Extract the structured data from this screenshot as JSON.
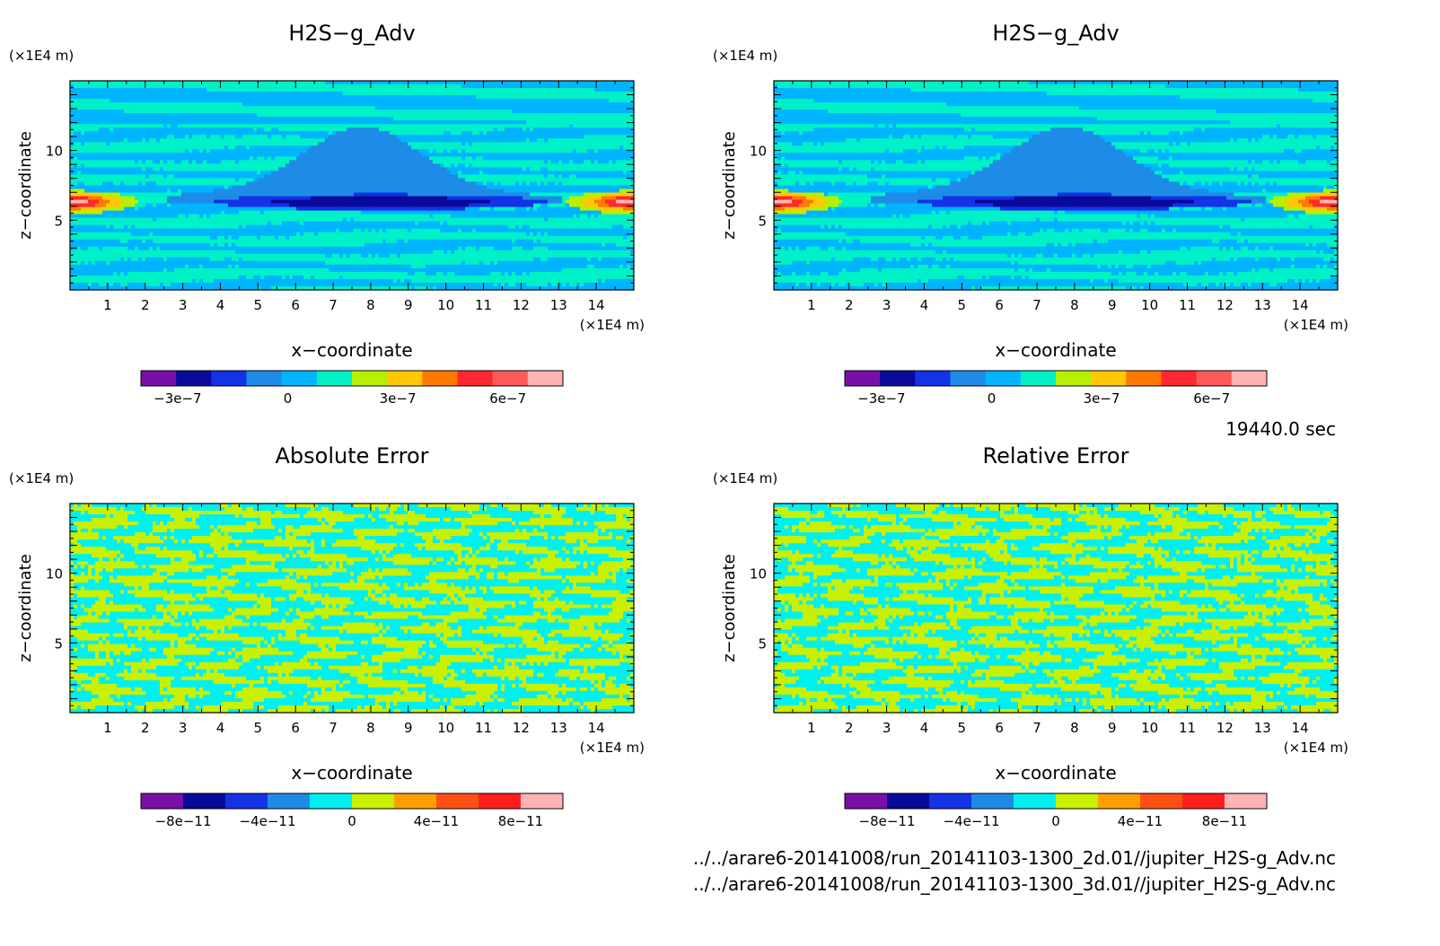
{
  "time_label": "19440.0 sec",
  "file_paths": [
    "../../arare6-20141008/run_20141103-1300_2d.01//jupiter_H2S-g_Adv.nc",
    "../../arare6-20141008/run_20141103-1300_3d.01//jupiter_H2S-g_Adv.nc"
  ],
  "palette": {
    "field": [
      "#7a0fa8",
      "#0a0a9a",
      "#1432e6",
      "#1e8ce6",
      "#00b4ff",
      "#00f0c8",
      "#b4f000",
      "#ffc800",
      "#ff7800",
      "#ff2830",
      "#ff5a5a",
      "#ffb4b4"
    ],
    "error": [
      "#7a0fa8",
      "#0a0a9a",
      "#1432e6",
      "#1e8ce6",
      "#00f0f0",
      "#c8f000",
      "#ffa000",
      "#ff5014",
      "#ff1e1e",
      "#ffb4b4"
    ]
  },
  "chart_data": [
    {
      "type": "heatmap",
      "title": "H2S−g_Adv",
      "xlabel": "x−coordinate",
      "ylabel": "z−coordinate",
      "x_unit": "(×1E4 m)",
      "y_unit": "(×1E4 m)",
      "xlim": [
        0,
        15
      ],
      "ylim": [
        0,
        15
      ],
      "xticks": [
        1,
        2,
        3,
        4,
        5,
        6,
        7,
        8,
        9,
        10,
        11,
        12,
        13,
        14
      ],
      "yticks": [
        5,
        10
      ],
      "pattern": "field",
      "colorbar": {
        "range": [
          -4e-07,
          7.5e-07
        ],
        "ticks": [
          "−3e−7",
          "0",
          "3e−7",
          "6e−7"
        ],
        "tick_values": [
          -3e-07,
          0,
          3e-07,
          6e-07
        ],
        "palette": "field"
      }
    },
    {
      "type": "heatmap",
      "title": "H2S−g_Adv",
      "xlabel": "x−coordinate",
      "ylabel": "z−coordinate",
      "x_unit": "(×1E4 m)",
      "y_unit": "(×1E4 m)",
      "xlim": [
        0,
        15
      ],
      "ylim": [
        0,
        15
      ],
      "xticks": [
        1,
        2,
        3,
        4,
        5,
        6,
        7,
        8,
        9,
        10,
        11,
        12,
        13,
        14
      ],
      "yticks": [
        5,
        10
      ],
      "pattern": "field",
      "colorbar": {
        "range": [
          -4e-07,
          7.5e-07
        ],
        "ticks": [
          "−3e−7",
          "0",
          "3e−7",
          "6e−7"
        ],
        "tick_values": [
          -3e-07,
          0,
          3e-07,
          6e-07
        ],
        "palette": "field"
      }
    },
    {
      "type": "heatmap",
      "title": "Absolute Error",
      "xlabel": "x−coordinate",
      "ylabel": "z−coordinate",
      "x_unit": "(×1E4 m)",
      "y_unit": "(×1E4 m)",
      "xlim": [
        0,
        15
      ],
      "ylim": [
        0,
        15
      ],
      "xticks": [
        1,
        2,
        3,
        4,
        5,
        6,
        7,
        8,
        9,
        10,
        11,
        12,
        13,
        14
      ],
      "yticks": [
        5,
        10
      ],
      "pattern": "noise",
      "colorbar": {
        "range": [
          -1e-10,
          1e-10
        ],
        "ticks": [
          "−8e−11",
          "−4e−11",
          "0",
          "4e−11",
          "8e−11"
        ],
        "tick_values": [
          -8e-11,
          -4e-11,
          0,
          4e-11,
          8e-11
        ],
        "palette": "error"
      }
    },
    {
      "type": "heatmap",
      "title": "Relative Error",
      "xlabel": "x−coordinate",
      "ylabel": "z−coordinate",
      "x_unit": "(×1E4 m)",
      "y_unit": "(×1E4 m)",
      "xlim": [
        0,
        15
      ],
      "ylim": [
        0,
        15
      ],
      "xticks": [
        1,
        2,
        3,
        4,
        5,
        6,
        7,
        8,
        9,
        10,
        11,
        12,
        13,
        14
      ],
      "yticks": [
        5,
        10
      ],
      "pattern": "noise",
      "colorbar": {
        "range": [
          -1e-10,
          1e-10
        ],
        "ticks": [
          "−8e−11",
          "−4e−11",
          "0",
          "4e−11",
          "8e−11"
        ],
        "tick_values": [
          -8e-11,
          -4e-11,
          0,
          4e-11,
          8e-11
        ],
        "palette": "error"
      }
    }
  ]
}
